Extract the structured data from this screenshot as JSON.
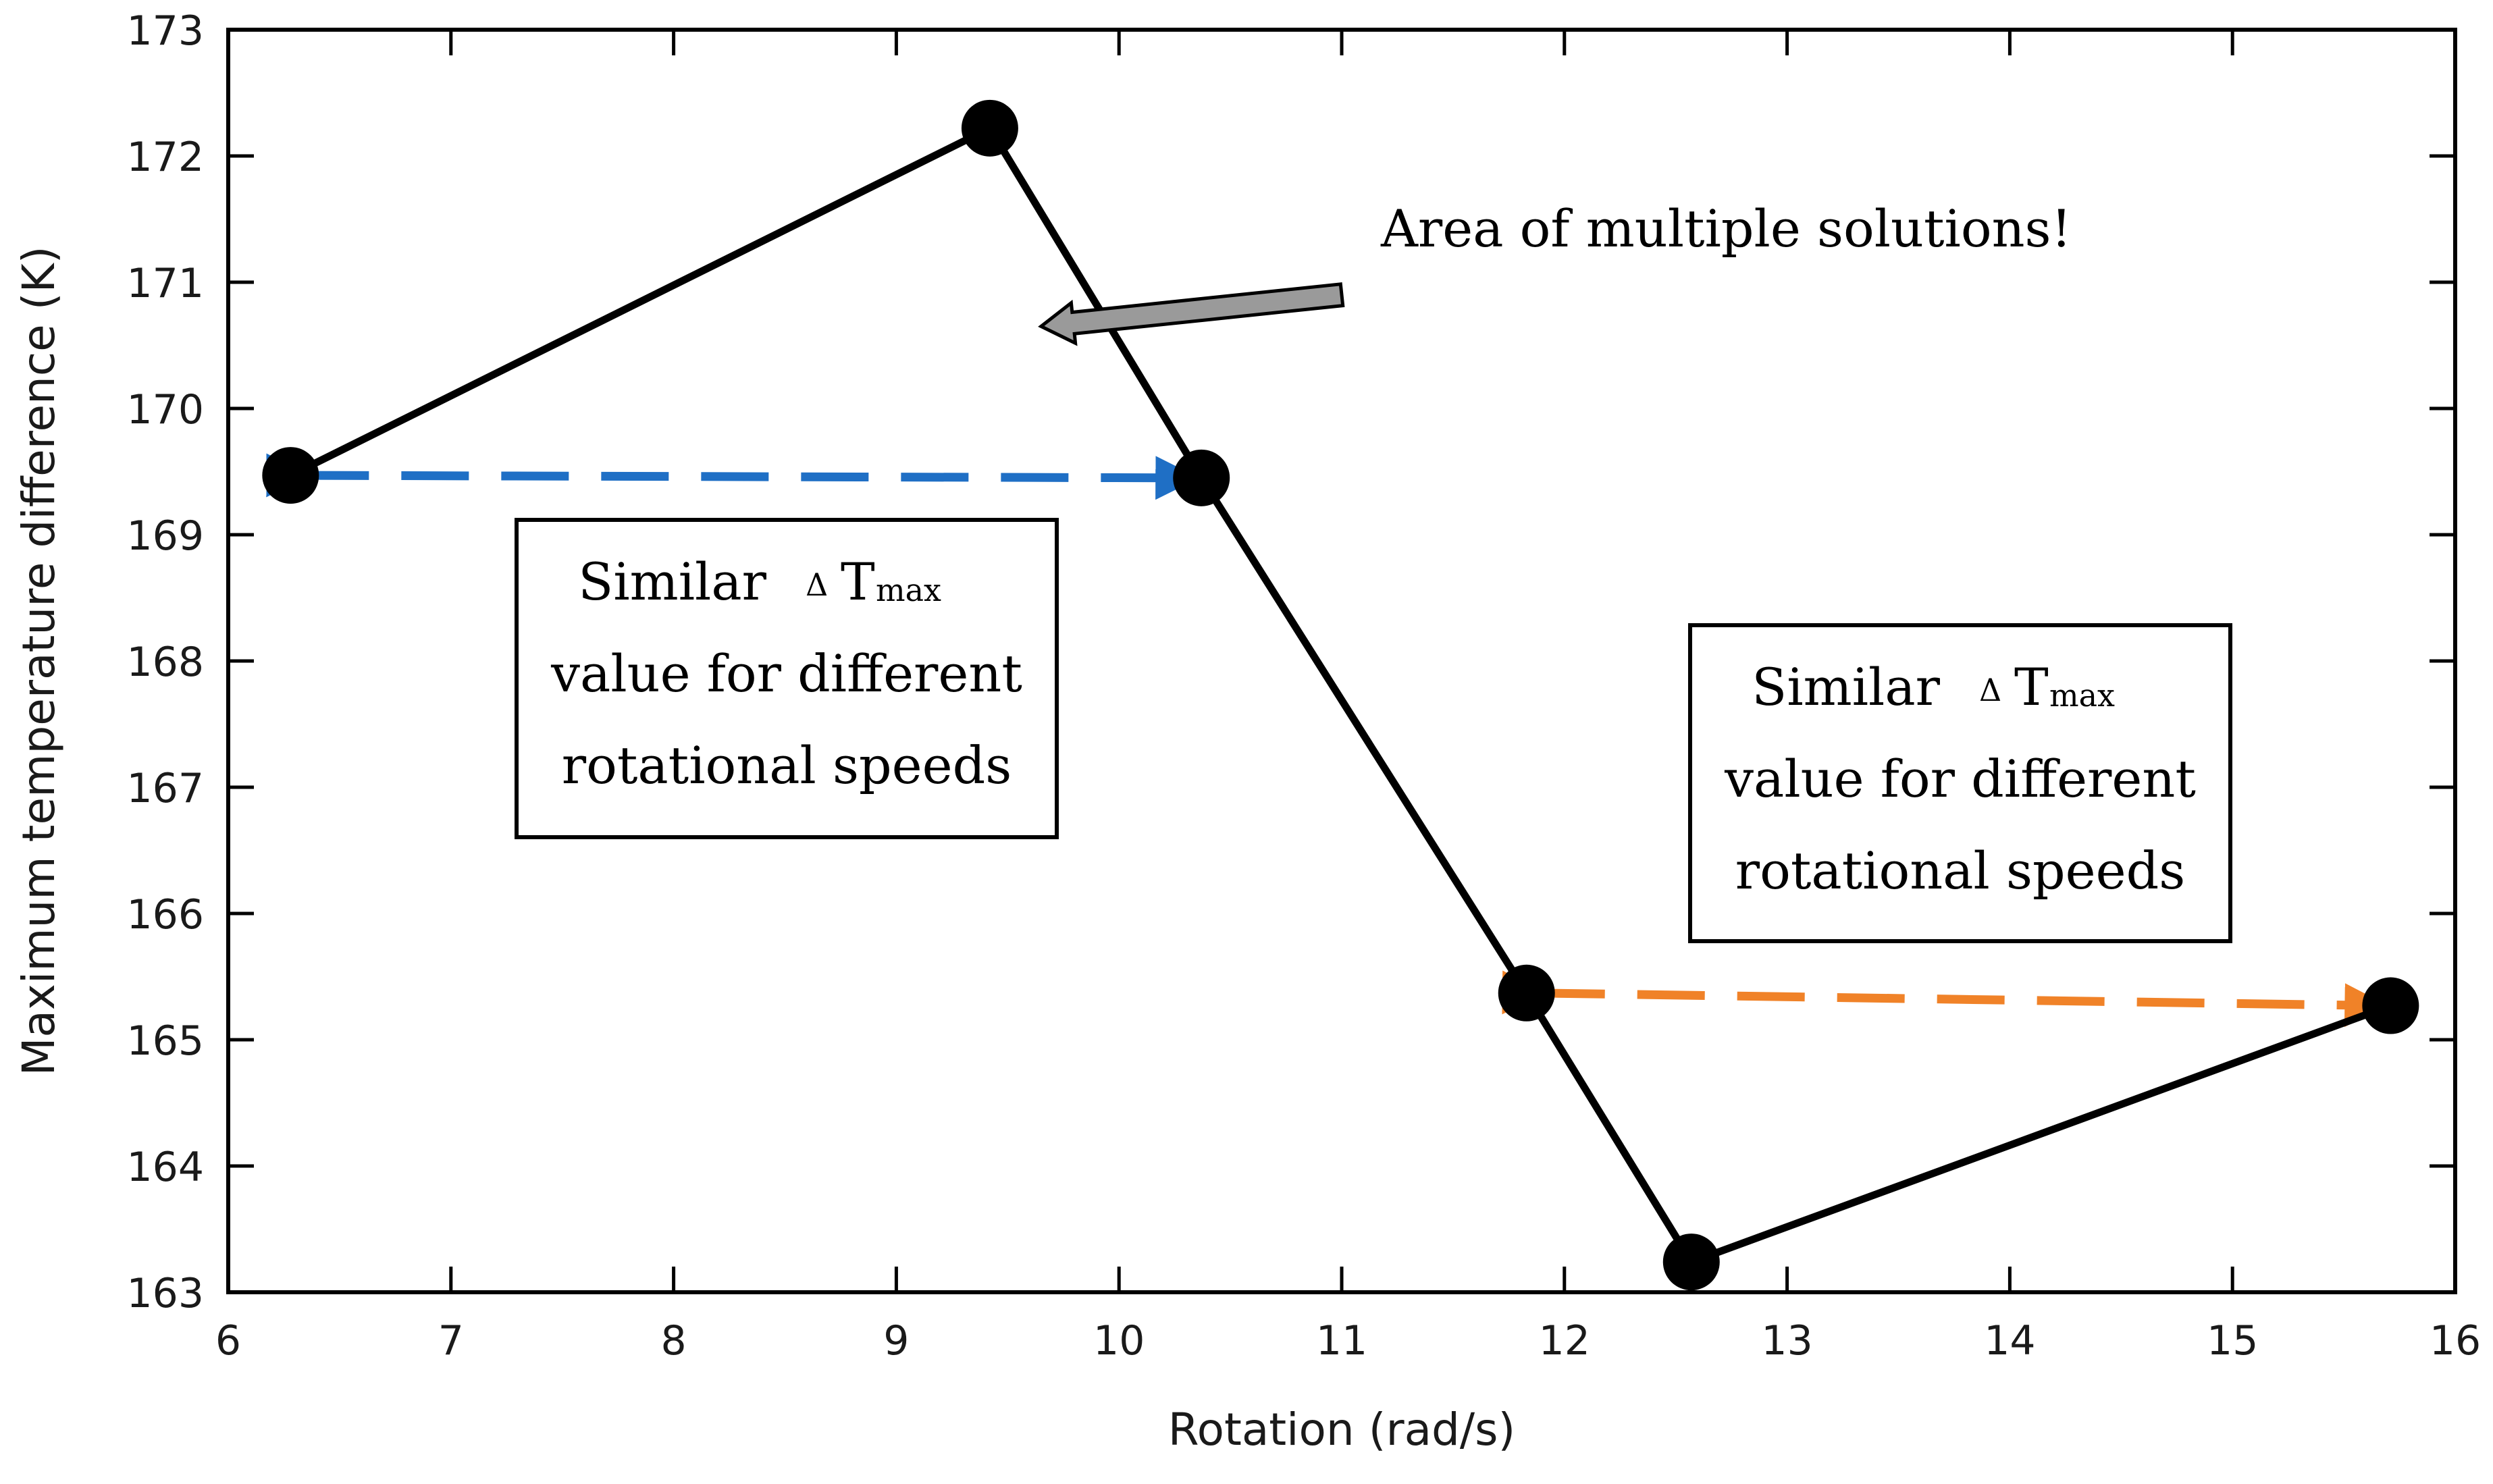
{
  "chart_data": {
    "type": "line",
    "title": "",
    "xlabel": "Rotation (rad/s)",
    "ylabel": "Maximum temperature difference (K)",
    "xlim": [
      6,
      16
    ],
    "ylim": [
      163,
      173
    ],
    "x_ticks": [
      6,
      7,
      8,
      9,
      10,
      11,
      12,
      13,
      14,
      15,
      16
    ],
    "y_ticks": [
      163,
      164,
      165,
      166,
      167,
      168,
      169,
      170,
      171,
      172,
      173
    ],
    "grid": false,
    "series": [
      {
        "x": [
          6.28,
          9.42,
          10.37,
          11.83,
          12.57,
          15.71
        ],
        "y": [
          169.47,
          172.22,
          169.45,
          165.37,
          163.24,
          165.27
        ],
        "color": "#000000",
        "marker": "circle"
      }
    ],
    "annotations": [
      {
        "text": "Area of multiple solutions!",
        "arrow_from": [
          11.0,
          170.9
        ],
        "arrow_to": [
          9.65,
          170.65
        ],
        "arrow_color": "#9a9a9a"
      }
    ],
    "comparison_arrows": [
      {
        "from": [
          6.28,
          169.47
        ],
        "to": [
          10.37,
          169.45
        ],
        "color": "#1f6fc5",
        "style": "dashed"
      },
      {
        "from": [
          11.83,
          165.37
        ],
        "to": [
          15.71,
          165.27
        ],
        "color": "#f08228",
        "style": "dashed"
      }
    ],
    "text_boxes": [
      {
        "lines": [
          {
            "main": "Similar",
            "delta": "Δ",
            "symbol": "T",
            "subscript": "max"
          },
          {
            "main": "value for different"
          },
          {
            "main": "rotational speeds"
          }
        ]
      },
      {
        "lines": [
          {
            "main": "Similar",
            "delta": "Δ",
            "symbol": "T",
            "subscript": "max"
          },
          {
            "main": "value for different"
          },
          {
            "main": "rotational speeds"
          }
        ]
      }
    ]
  }
}
